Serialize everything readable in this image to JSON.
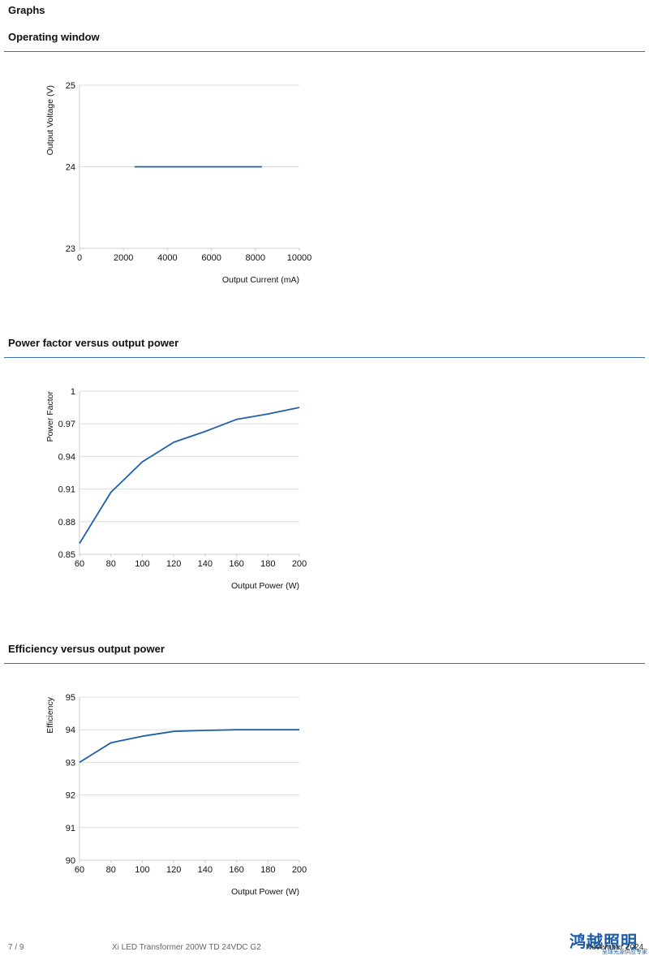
{
  "page": {
    "heading": "Graphs",
    "footer_page": "7 / 9",
    "footer_product": "Xi LED Transformer 200W TD 24VDC G2",
    "footer_date": "November 2024",
    "logo_text": "鸿越照明",
    "logo_sub": "全球光源供应专家"
  },
  "sections": [
    {
      "title": "Operating window"
    },
    {
      "title": "Power factor versus output power"
    },
    {
      "title": "Efficiency versus output power"
    }
  ],
  "colors": {
    "accent": "#3f6fb0",
    "line": "#1f5fa8",
    "grid": "#dddddd"
  },
  "chart_data": [
    {
      "type": "line",
      "xlabel": "Output Current (mA)",
      "ylabel": "Output Voltage (V)",
      "xlim": [
        0,
        10000
      ],
      "ylim": [
        23,
        25
      ],
      "xticks": [
        0,
        2000,
        4000,
        6000,
        8000,
        10000
      ],
      "xtick_labels": [
        "0",
        "2000",
        "4000",
        "6000",
        "8000",
        "10000"
      ],
      "yticks": [
        23,
        24,
        25
      ],
      "ytick_labels": [
        "23",
        "24",
        "25"
      ],
      "grid": true,
      "series": [
        {
          "x": [
            2500,
            8300
          ],
          "y": [
            24,
            24
          ]
        }
      ]
    },
    {
      "type": "line",
      "xlabel": "Output Power (W)",
      "ylabel": "Power Factor",
      "xlim": [
        60,
        200
      ],
      "ylim": [
        0.85,
        1
      ],
      "xticks": [
        60,
        80,
        100,
        120,
        140,
        160,
        180,
        200
      ],
      "xtick_labels": [
        "60",
        "80",
        "100",
        "120",
        "140",
        "160",
        "180",
        "200"
      ],
      "yticks": [
        0.85,
        0.88,
        0.91,
        0.94,
        0.97,
        1
      ],
      "ytick_labels": [
        "0.85",
        "0.88",
        "0.91",
        "0.94",
        "0.97",
        "1"
      ],
      "grid": true,
      "series": [
        {
          "x": [
            60,
            80,
            100,
            120,
            140,
            160,
            180,
            200
          ],
          "y": [
            0.86,
            0.907,
            0.935,
            0.953,
            0.963,
            0.974,
            0.979,
            0.985
          ]
        }
      ]
    },
    {
      "type": "line",
      "xlabel": "Output Power (W)",
      "ylabel": "Efficiency",
      "xlim": [
        60,
        200
      ],
      "ylim": [
        90,
        95
      ],
      "xticks": [
        60,
        80,
        100,
        120,
        140,
        160,
        180,
        200
      ],
      "xtick_labels": [
        "60",
        "80",
        "100",
        "120",
        "140",
        "160",
        "180",
        "200"
      ],
      "yticks": [
        90,
        91,
        92,
        93,
        94,
        95
      ],
      "ytick_labels": [
        "90",
        "91",
        "92",
        "93",
        "94",
        "95"
      ],
      "grid": true,
      "series": [
        {
          "x": [
            60,
            80,
            100,
            120,
            140,
            160,
            180,
            200
          ],
          "y": [
            93,
            93.6,
            93.8,
            93.95,
            93.98,
            94,
            94,
            94
          ]
        }
      ]
    }
  ]
}
